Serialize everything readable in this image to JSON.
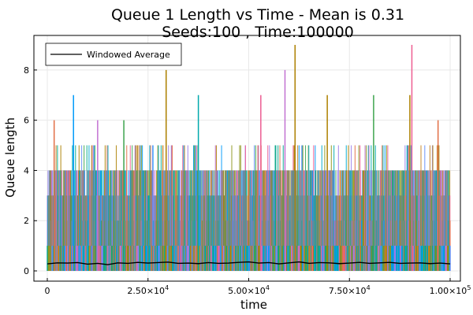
{
  "chart_data": {
    "type": "line",
    "title_line1": "Queue 1 Length vs Time - Mean is 0.31",
    "title_line2": "Seeds:100 , Time:100000",
    "xlabel": "time",
    "ylabel": "Queue length",
    "xlim": [
      0,
      100000
    ],
    "ylim": [
      0,
      9
    ],
    "x_ticks": [
      {
        "value": 0,
        "base": "0",
        "exp": ""
      },
      {
        "value": 25000,
        "base": "2.50×10",
        "exp": "4"
      },
      {
        "value": 50000,
        "base": "5.00×10",
        "exp": "4"
      },
      {
        "value": 75000,
        "base": "7.50×10",
        "exp": "4"
      },
      {
        "value": 100000,
        "base": "1.00×10",
        "exp": "5"
      }
    ],
    "y_ticks": [
      0,
      2,
      4,
      6,
      8
    ],
    "legend": {
      "entries": [
        "Windowed Average"
      ],
      "position": "top-left"
    },
    "grid": true,
    "windowed_average": {
      "name": "Windowed Average",
      "color": "#000000",
      "x": [
        0,
        2500,
        5000,
        7500,
        10000,
        12500,
        15000,
        17500,
        20000,
        22500,
        25000,
        27500,
        30000,
        32500,
        35000,
        37500,
        40000,
        42500,
        45000,
        47500,
        50000,
        52500,
        55000,
        57500,
        60000,
        62500,
        65000,
        67500,
        70000,
        72500,
        75000,
        77500,
        80000,
        82500,
        85000,
        87500,
        90000,
        92500,
        95000,
        97500,
        100000
      ],
      "y": [
        0.28,
        0.32,
        0.31,
        0.33,
        0.27,
        0.3,
        0.25,
        0.32,
        0.3,
        0.34,
        0.31,
        0.33,
        0.35,
        0.3,
        0.31,
        0.29,
        0.33,
        0.3,
        0.31,
        0.34,
        0.36,
        0.31,
        0.33,
        0.28,
        0.32,
        0.36,
        0.3,
        0.33,
        0.32,
        0.29,
        0.31,
        0.34,
        0.3,
        0.32,
        0.34,
        0.3,
        0.31,
        0.32,
        0.29,
        0.31,
        0.28
      ]
    },
    "seed_series_count": 100,
    "seed_series_peaks": [
      {
        "x": 1700,
        "y": 6,
        "color": "#e26f46"
      },
      {
        "x": 6500,
        "y": 7,
        "color": "#009af9"
      },
      {
        "x": 12500,
        "y": 6,
        "color": "#c271d2"
      },
      {
        "x": 19000,
        "y": 6,
        "color": "#3da44d"
      },
      {
        "x": 29500,
        "y": 8,
        "color": "#ad8000"
      },
      {
        "x": 37500,
        "y": 7,
        "color": "#00a9ad"
      },
      {
        "x": 53000,
        "y": 7,
        "color": "#ed5d92"
      },
      {
        "x": 59000,
        "y": 8,
        "color": "#c271d2"
      },
      {
        "x": 61500,
        "y": 9,
        "color": "#ad8000"
      },
      {
        "x": 69500,
        "y": 7,
        "color": "#ad8000"
      },
      {
        "x": 81000,
        "y": 7,
        "color": "#3da44d"
      },
      {
        "x": 90500,
        "y": 9,
        "color": "#ed5d92"
      },
      {
        "x": 90000,
        "y": 7,
        "color": "#ad8000"
      },
      {
        "x": 97000,
        "y": 6,
        "color": "#e26f46"
      }
    ],
    "seed_palette": [
      "#009af9",
      "#e26f46",
      "#3da44d",
      "#c271d2",
      "#ad8000",
      "#00a9ad",
      "#ed5d92",
      "#c68225",
      "#00a98d",
      "#8e971e",
      "#00a8cb",
      "#9b7fe9",
      "#618df6"
    ]
  }
}
